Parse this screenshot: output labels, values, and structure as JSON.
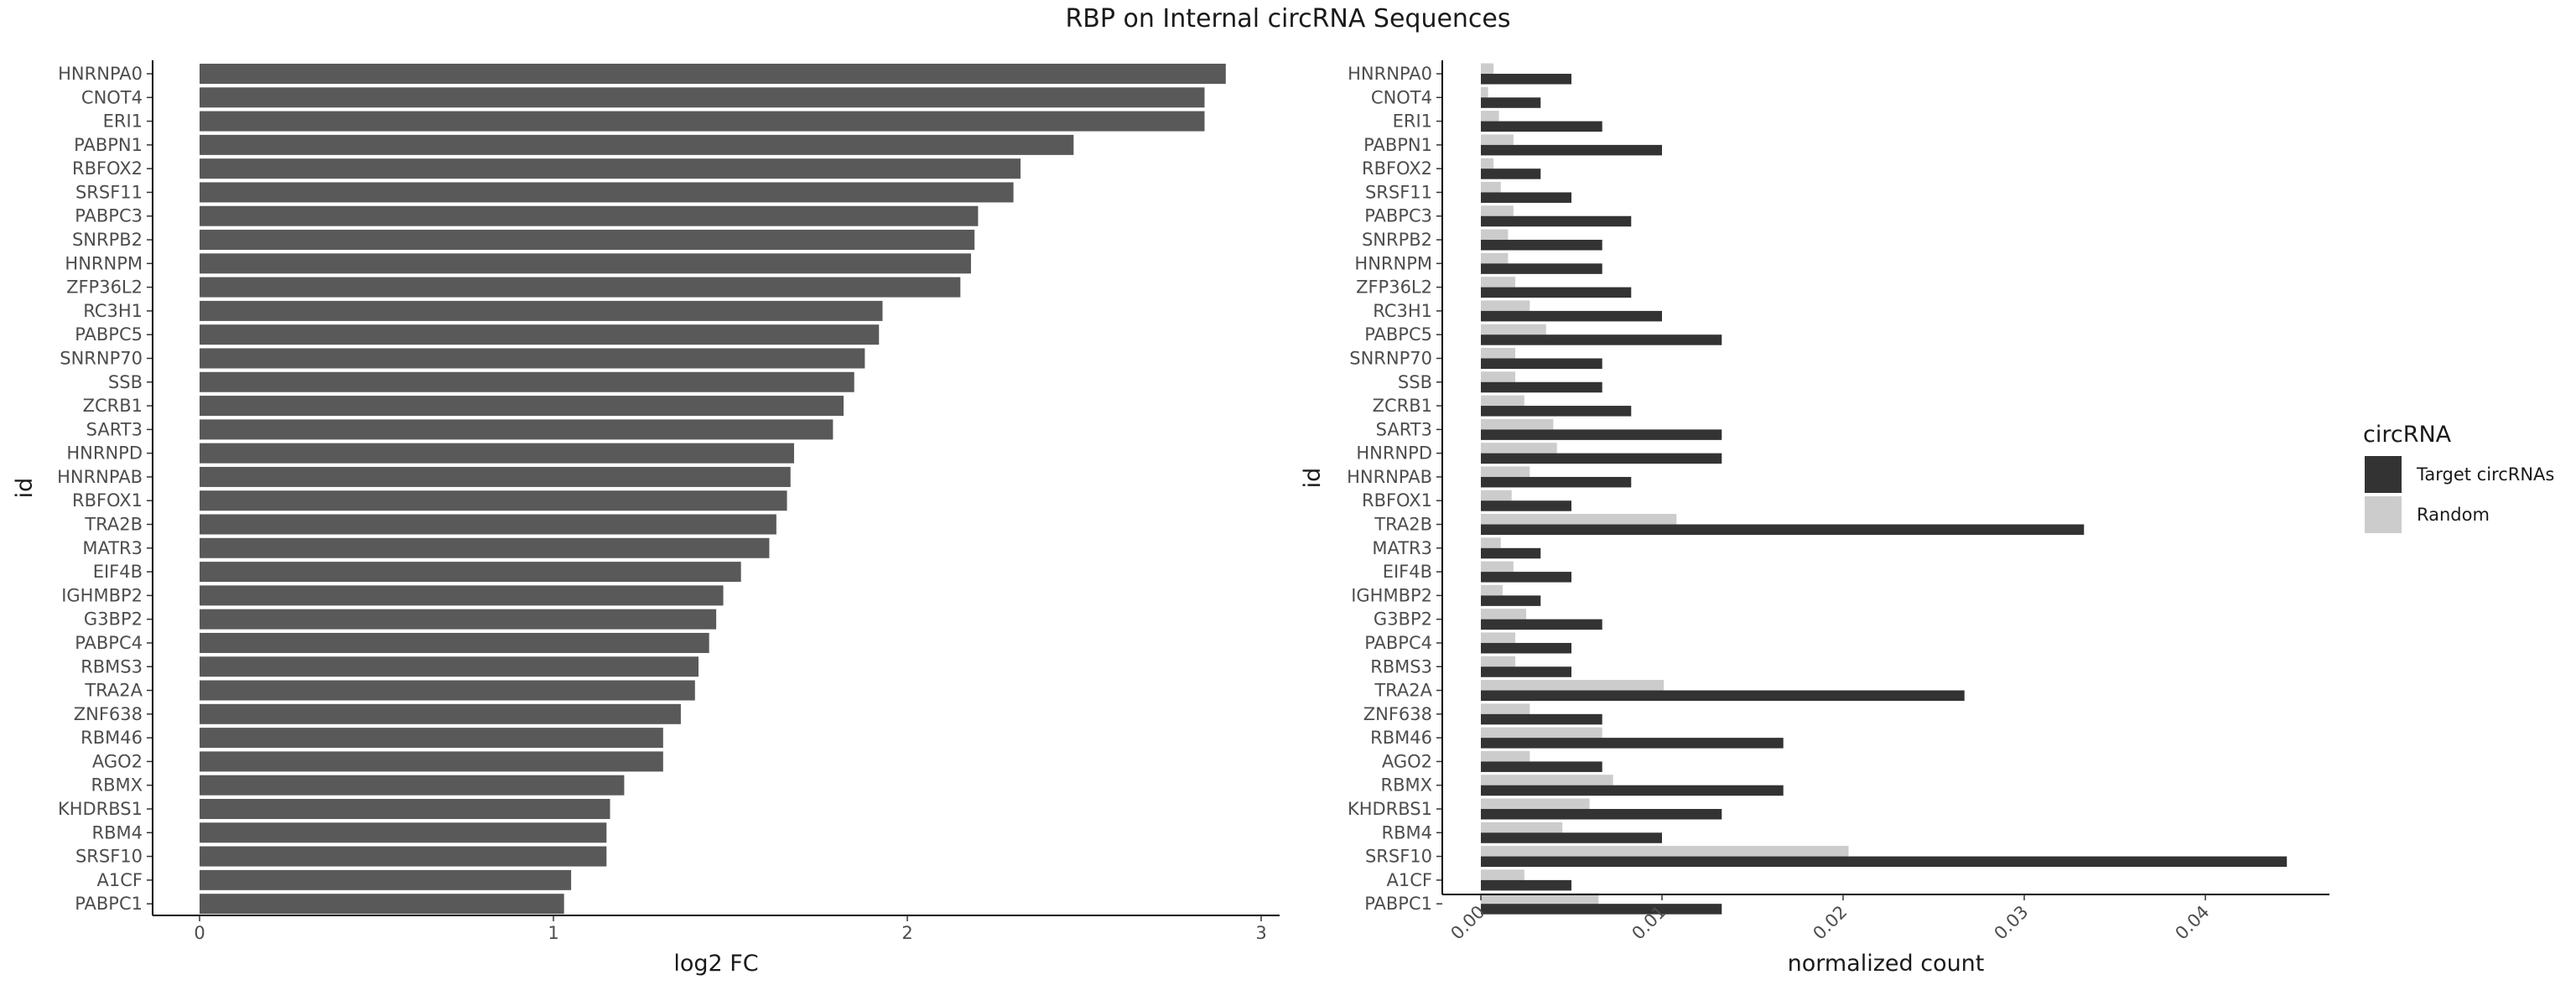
{
  "title": "RBP on Internal circRNA Sequences",
  "chart_data": [
    {
      "type": "bar",
      "orientation": "horizontal",
      "xlabel": "log2 FC",
      "ylabel": "id",
      "xlim": [
        0,
        3
      ],
      "xticks": [
        "0",
        "1",
        "2",
        "3"
      ],
      "bar_color": "#595959",
      "categories": [
        "HNRNPA0",
        "CNOT4",
        "ERI1",
        "PABPN1",
        "RBFOX2",
        "SRSF11",
        "PABPC3",
        "SNRPB2",
        "HNRNPM",
        "ZFP36L2",
        "RC3H1",
        "PABPC5",
        "SNRNP70",
        "SSB",
        "ZCRB1",
        "SART3",
        "HNRNPD",
        "HNRNPAB",
        "RBFOX1",
        "TRA2B",
        "MATR3",
        "EIF4B",
        "IGHMBP2",
        "G3BP2",
        "PABPC4",
        "RBMS3",
        "TRA2A",
        "ZNF638",
        "RBM46",
        "AGO2",
        "RBMX",
        "KHDRBS1",
        "RBM4",
        "SRSF10",
        "A1CF",
        "PABPC1"
      ],
      "values": [
        2.9,
        2.84,
        2.84,
        2.47,
        2.32,
        2.3,
        2.2,
        2.19,
        2.18,
        2.15,
        1.93,
        1.92,
        1.88,
        1.85,
        1.82,
        1.79,
        1.68,
        1.67,
        1.66,
        1.63,
        1.61,
        1.53,
        1.48,
        1.46,
        1.44,
        1.41,
        1.4,
        1.36,
        1.31,
        1.31,
        1.2,
        1.16,
        1.15,
        1.15,
        1.05,
        1.03
      ],
      "grid": false
    },
    {
      "type": "bar",
      "orientation": "horizontal",
      "xlabel": "normalized count",
      "ylabel": "id",
      "xlim": [
        -0.0025,
        0.0465
      ],
      "xticks": [
        "0.00",
        "0.01",
        "0.02",
        "0.03",
        "0.04"
      ],
      "categories": [
        "HNRNPA0",
        "CNOT4",
        "ERI1",
        "PABPN1",
        "RBFOX2",
        "SRSF11",
        "PABPC3",
        "SNRPB2",
        "HNRNPM",
        "ZFP36L2",
        "RC3H1",
        "PABPC5",
        "SNRNP70",
        "SSB",
        "ZCRB1",
        "SART3",
        "HNRNPD",
        "HNRNPAB",
        "RBFOX1",
        "TRA2B",
        "MATR3",
        "EIF4B",
        "IGHMBP2",
        "G3BP2",
        "PABPC4",
        "RBMS3",
        "TRA2A",
        "ZNF638",
        "RBM46",
        "AGO2",
        "RBMX",
        "KHDRBS1",
        "RBM4",
        "SRSF10",
        "A1CF",
        "PABPC1"
      ],
      "series": [
        {
          "name": "Target circRNAs",
          "color": "#333333",
          "values": [
            0.005,
            0.0033,
            0.0067,
            0.01,
            0.0033,
            0.005,
            0.0083,
            0.0067,
            0.0067,
            0.0083,
            0.01,
            0.0133,
            0.0067,
            0.0067,
            0.0083,
            0.0133,
            0.0133,
            0.0083,
            0.005,
            0.0333,
            0.0033,
            0.005,
            0.0033,
            0.0067,
            0.005,
            0.005,
            0.0267,
            0.0067,
            0.0167,
            0.0067,
            0.0167,
            0.0133,
            0.01,
            0.0445,
            0.005,
            0.0133
          ]
        },
        {
          "name": "Random",
          "color": "#cccccc",
          "values": [
            0.0007,
            0.0004,
            0.001,
            0.0018,
            0.0007,
            0.0011,
            0.0018,
            0.0015,
            0.0015,
            0.0019,
            0.0027,
            0.0036,
            0.0019,
            0.0019,
            0.0024,
            0.004,
            0.0042,
            0.0027,
            0.0017,
            0.0108,
            0.0011,
            0.0018,
            0.0012,
            0.0025,
            0.0019,
            0.0019,
            0.0101,
            0.0027,
            0.0067,
            0.0027,
            0.0073,
            0.006,
            0.0045,
            0.0203,
            0.0024,
            0.0065
          ]
        }
      ],
      "legend": {
        "title": "circRNA",
        "position": "right"
      },
      "grid": false
    }
  ]
}
